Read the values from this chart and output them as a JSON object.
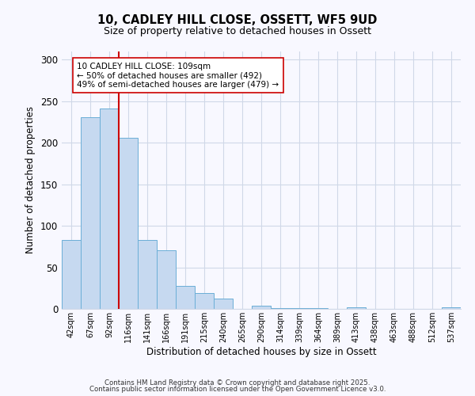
{
  "title": "10, CADLEY HILL CLOSE, OSSETT, WF5 9UD",
  "subtitle": "Size of property relative to detached houses in Ossett",
  "xlabel": "Distribution of detached houses by size in Ossett",
  "ylabel": "Number of detached properties",
  "bar_labels": [
    "42sqm",
    "67sqm",
    "92sqm",
    "116sqm",
    "141sqm",
    "166sqm",
    "191sqm",
    "215sqm",
    "240sqm",
    "265sqm",
    "290sqm",
    "314sqm",
    "339sqm",
    "364sqm",
    "389sqm",
    "413sqm",
    "438sqm",
    "463sqm",
    "488sqm",
    "512sqm",
    "537sqm"
  ],
  "bar_values": [
    83,
    231,
    241,
    206,
    83,
    71,
    28,
    19,
    12,
    0,
    4,
    1,
    1,
    1,
    0,
    2,
    0,
    0,
    0,
    0,
    2
  ],
  "bar_color": "#c6d9f0",
  "bar_edge_color": "#6baed6",
  "vline_x_index": 3,
  "vline_color": "#cc0000",
  "annotation_title": "10 CADLEY HILL CLOSE: 109sqm",
  "annotation_line1": "← 50% of detached houses are smaller (492)",
  "annotation_line2": "49% of semi-detached houses are larger (479) →",
  "annotation_box_color": "#ffffff",
  "annotation_box_edge": "#cc0000",
  "ylim": [
    0,
    310
  ],
  "yticks": [
    0,
    50,
    100,
    150,
    200,
    250,
    300
  ],
  "background_color": "#f8f8ff",
  "grid_color": "#d0d8e8",
  "footer1": "Contains HM Land Registry data © Crown copyright and database right 2025.",
  "footer2": "Contains public sector information licensed under the Open Government Licence v3.0."
}
